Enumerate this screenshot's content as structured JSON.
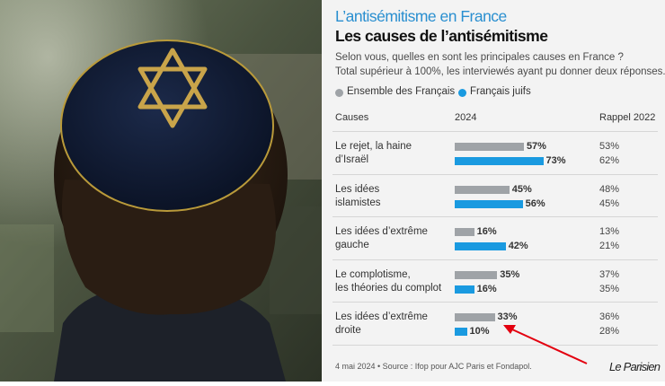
{
  "header": {
    "kicker": "L’antisémitisme en France",
    "title": "Les causes de l’antisémitisme"
  },
  "intro": {
    "line1": "Selon vous, quelles en sont les principales causes en France ?",
    "line2": "Total supérieur à 100%, les interviewés ayant pu donner deux réponses."
  },
  "legend": {
    "series1": "Ensemble des Français",
    "series2": "Français juifs"
  },
  "columns": {
    "causes": "Causes",
    "year": "2024",
    "recall": "Rappel 2022"
  },
  "colors": {
    "series1": "#9fa3a7",
    "series2": "#1a9ae0",
    "arrow": "#e3000f",
    "kicker": "#2a8fd0",
    "panel_bg": "#f3f3f3"
  },
  "chart_data": {
    "type": "bar",
    "orientation": "horizontal",
    "categories": [
      [
        "Le rejet, la haine",
        "d’Israël"
      ],
      [
        "Les idées",
        "islamistes"
      ],
      [
        "Les idées d’extrême",
        "gauche"
      ],
      [
        "Le complotisme,",
        "les théories du complot"
      ],
      [
        "Les idées d’extrême",
        "droite"
      ]
    ],
    "series": [
      {
        "name": "Ensemble des Français",
        "values": [
          57,
          45,
          16,
          35,
          33
        ],
        "labels": [
          "57%",
          "45%",
          "16%",
          "35%",
          "33%"
        ],
        "recall_2022": [
          "53%",
          "48%",
          "13%",
          "37%",
          "36%"
        ]
      },
      {
        "name": "Français juifs",
        "values": [
          73,
          56,
          42,
          16,
          10
        ],
        "labels": [
          "73%",
          "56%",
          "42%",
          "16%",
          "10%"
        ],
        "recall_2022": [
          "62%",
          "45%",
          "21%",
          "35%",
          "28%"
        ]
      }
    ],
    "unit": "%",
    "annotation": "red arrow pointing to the 33% value for “Les idées d’extrême droite”"
  },
  "footer": {
    "source": "4 mai 2024 • Source : Ifop pour AJC Paris et Fondapol.",
    "brand": "Le Parisien"
  },
  "photo": {
    "subject": "man seen from behind wearing a dark blue kippah embroidered with a gold Star of David"
  }
}
